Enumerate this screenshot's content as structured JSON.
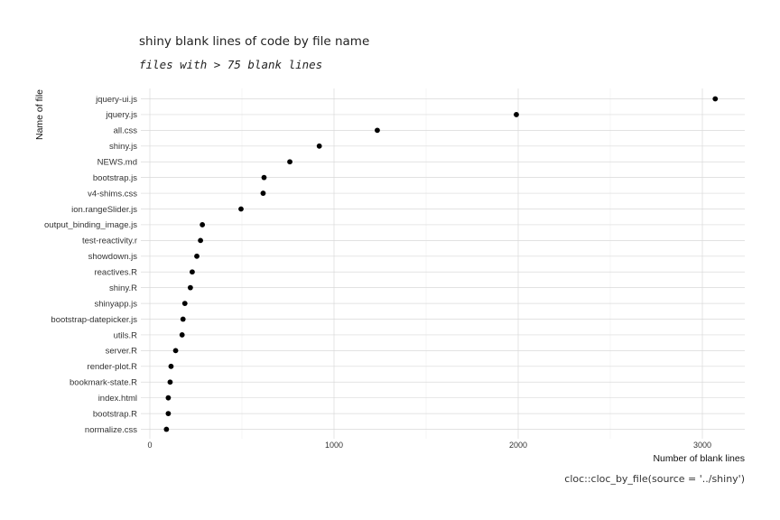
{
  "chart_data": {
    "type": "scatter",
    "title": "shiny blank lines of code by file name",
    "subtitle": "files with > 75 blank lines",
    "xlabel": "Number of blank lines",
    "ylabel": "Name of file",
    "caption": "cloc::cloc_by_file(source = '../shiny')",
    "xlim": [
      -80,
      3220
    ],
    "xticks": [
      0,
      1000,
      2000,
      3000
    ],
    "xtick_labels": [
      "0",
      "1000",
      "2000",
      "3000"
    ],
    "grid": true,
    "legend": "none",
    "categories": [
      "jquery-ui.js",
      "jquery.js",
      "all.css",
      "shiny.js",
      "NEWS.md",
      "bootstrap.js",
      "v4-shims.css",
      "ion.rangeSlider.js",
      "output_binding_image.js",
      "test-reactivity.r",
      "showdown.js",
      "reactives.R",
      "shiny.R",
      "shinyapp.js",
      "bootstrap-datepicker.js",
      "utils.R",
      "server.R",
      "render-plot.R",
      "bookmark-state.R",
      "index.html",
      "bootstrap.R",
      "normalize.css"
    ],
    "values": [
      3070,
      1990,
      1235,
      920,
      760,
      620,
      615,
      495,
      285,
      275,
      255,
      230,
      220,
      190,
      180,
      175,
      140,
      115,
      110,
      100,
      100,
      90
    ],
    "colors": {
      "point": "#000000",
      "grid": "#d9d9d9"
    }
  }
}
